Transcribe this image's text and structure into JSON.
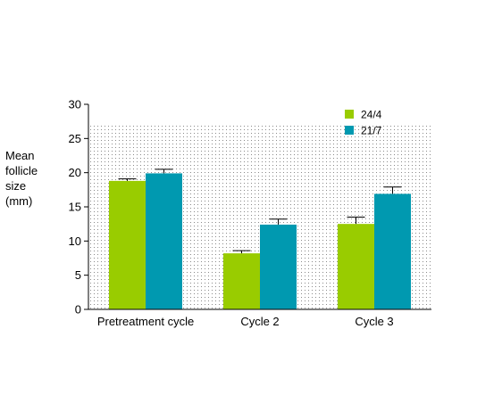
{
  "chart_data": {
    "type": "bar",
    "categories": [
      "Pretreatment cycle",
      "Cycle 2",
      "Cycle 3"
    ],
    "series": [
      {
        "name": "24/4",
        "color": "#99cc00",
        "values": [
          18.8,
          8.2,
          12.5
        ],
        "errors": [
          0.3,
          0.4,
          1.0
        ]
      },
      {
        "name": "21/7",
        "color": "#0099b0",
        "values": [
          19.9,
          12.4,
          16.9
        ],
        "errors": [
          0.6,
          0.8,
          1.0
        ]
      }
    ],
    "ylabel_lines": [
      "Mean",
      "follicle",
      "size",
      "(mm)"
    ],
    "ylim": [
      0,
      30
    ],
    "yticks": [
      0,
      5,
      10,
      15,
      20,
      25,
      30
    ],
    "grid": false,
    "plot_background": "dotted",
    "legend_position": "top-right",
    "error_bars": true
  }
}
